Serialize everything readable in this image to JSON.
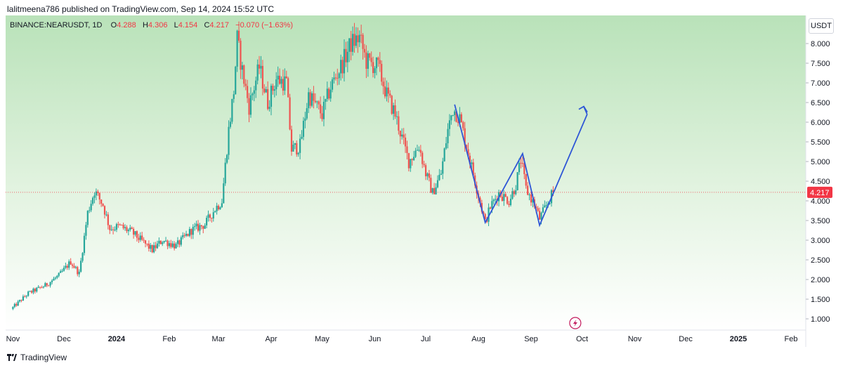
{
  "header": {
    "published_text": "lalitmeena786 published on TradingView.com, Sep 14, 2024 15:52 UTC"
  },
  "legend": {
    "symbol": "BINANCE:NEARUSDT, 1D",
    "o_label": "O",
    "o_value": "4.288",
    "h_label": "H",
    "h_value": "4.306",
    "l_label": "L",
    "l_value": "4.154",
    "c_label": "C",
    "c_value": "4.217",
    "change": "−0.070 (−1.63%)"
  },
  "currency_button": "USDT",
  "footer": {
    "brand": "TradingView"
  },
  "colors": {
    "up": "#26a69a",
    "down": "#ef5350",
    "annotation": "#2e56d6",
    "last_price_badge": "#f23645",
    "bg_top": "#b9e2b9",
    "bg_bottom": "#ffffff"
  },
  "chart_data": {
    "type": "candlestick",
    "symbol": "BINANCE:NEARUSDT",
    "interval": "1D",
    "last_price": 4.217,
    "last_price_label": "4.217",
    "ylim": [
      0.8,
      8.7
    ],
    "y_ticks": [
      {
        "value": 1.0,
        "label": "1.000"
      },
      {
        "value": 1.5,
        "label": "1.500"
      },
      {
        "value": 2.0,
        "label": "2.000"
      },
      {
        "value": 2.5,
        "label": "2.500"
      },
      {
        "value": 3.0,
        "label": "3.000"
      },
      {
        "value": 3.5,
        "label": "3.500"
      },
      {
        "value": 4.0,
        "label": "4.000"
      },
      {
        "value": 4.5,
        "label": "4.500"
      },
      {
        "value": 5.0,
        "label": "5.000"
      },
      {
        "value": 5.5,
        "label": "5.500"
      },
      {
        "value": 6.0,
        "label": "6.000"
      },
      {
        "value": 6.5,
        "label": "6.500"
      },
      {
        "value": 7.0,
        "label": "7.000"
      },
      {
        "value": 7.5,
        "label": "7.500"
      },
      {
        "value": 8.0,
        "label": "8.000"
      }
    ],
    "x_ticks": [
      {
        "date": "2023-11-01",
        "label": "Nov",
        "bold": false
      },
      {
        "date": "2023-12-01",
        "label": "Dec",
        "bold": false
      },
      {
        "date": "2024-01-01",
        "label": "2024",
        "bold": true
      },
      {
        "date": "2024-02-01",
        "label": "Feb",
        "bold": false
      },
      {
        "date": "2024-03-01",
        "label": "Mar",
        "bold": false
      },
      {
        "date": "2024-04-01",
        "label": "Apr",
        "bold": false
      },
      {
        "date": "2024-05-01",
        "label": "May",
        "bold": false
      },
      {
        "date": "2024-06-01",
        "label": "Jun",
        "bold": false
      },
      {
        "date": "2024-07-01",
        "label": "Jul",
        "bold": false
      },
      {
        "date": "2024-08-01",
        "label": "Aug",
        "bold": false
      },
      {
        "date": "2024-09-01",
        "label": "Sep",
        "bold": false
      },
      {
        "date": "2024-10-01",
        "label": "Oct",
        "bold": false
      },
      {
        "date": "2024-11-01",
        "label": "Nov",
        "bold": false
      },
      {
        "date": "2024-12-01",
        "label": "Dec",
        "bold": false
      },
      {
        "date": "2025-01-01",
        "label": "2025",
        "bold": true
      },
      {
        "date": "2025-02-01",
        "label": "Feb",
        "bold": false
      }
    ],
    "price_path": [
      [
        "2023-10-31",
        1.25
      ],
      [
        "2023-11-10",
        1.65
      ],
      [
        "2023-11-20",
        1.85
      ],
      [
        "2023-11-28",
        2.1
      ],
      [
        "2023-12-05",
        2.45
      ],
      [
        "2023-12-10",
        2.15
      ],
      [
        "2023-12-15",
        3.7
      ],
      [
        "2023-12-19",
        4.25
      ],
      [
        "2023-12-24",
        3.9
      ],
      [
        "2023-12-28",
        3.3
      ],
      [
        "2024-01-03",
        3.35
      ],
      [
        "2024-01-10",
        3.2
      ],
      [
        "2024-01-22",
        2.75
      ],
      [
        "2024-01-28",
        3.0
      ],
      [
        "2024-02-05",
        2.85
      ],
      [
        "2024-02-14",
        3.25
      ],
      [
        "2024-02-22",
        3.4
      ],
      [
        "2024-02-28",
        3.8
      ],
      [
        "2024-03-03",
        4.0
      ],
      [
        "2024-03-07",
        5.8
      ],
      [
        "2024-03-10",
        6.8
      ],
      [
        "2024-03-12",
        8.1
      ],
      [
        "2024-03-15",
        7.3
      ],
      [
        "2024-03-19",
        6.4
      ],
      [
        "2024-03-25",
        7.4
      ],
      [
        "2024-03-30",
        6.5
      ],
      [
        "2024-04-04",
        7.1
      ],
      [
        "2024-04-10",
        7.0
      ],
      [
        "2024-04-13",
        5.3
      ],
      [
        "2024-04-18",
        5.4
      ],
      [
        "2024-04-23",
        6.7
      ],
      [
        "2024-05-01",
        6.2
      ],
      [
        "2024-05-06",
        6.9
      ],
      [
        "2024-05-13",
        7.5
      ],
      [
        "2024-05-18",
        8.0
      ],
      [
        "2024-05-23",
        8.15
      ],
      [
        "2024-05-27",
        7.55
      ],
      [
        "2024-06-03",
        7.4
      ],
      [
        "2024-06-08",
        6.7
      ],
      [
        "2024-06-13",
        6.2
      ],
      [
        "2024-06-17",
        5.6
      ],
      [
        "2024-06-21",
        5.0
      ],
      [
        "2024-06-27",
        5.4
      ],
      [
        "2024-07-01",
        4.7
      ],
      [
        "2024-07-05",
        4.2
      ],
      [
        "2024-07-10",
        4.7
      ],
      [
        "2024-07-14",
        5.8
      ],
      [
        "2024-07-17",
        6.35
      ],
      [
        "2024-07-21",
        6.1
      ],
      [
        "2024-07-25",
        5.4
      ],
      [
        "2024-07-30",
        4.5
      ],
      [
        "2024-08-05",
        3.45
      ],
      [
        "2024-08-08",
        3.85
      ],
      [
        "2024-08-13",
        4.2
      ],
      [
        "2024-08-19",
        4.0
      ],
      [
        "2024-08-23",
        4.4
      ],
      [
        "2024-08-26",
        5.05
      ],
      [
        "2024-08-29",
        4.3
      ],
      [
        "2024-09-03",
        3.9
      ],
      [
        "2024-09-06",
        3.55
      ],
      [
        "2024-09-09",
        3.8
      ],
      [
        "2024-09-14",
        4.217
      ]
    ],
    "annotation_path": [
      [
        "2024-07-18",
        6.45
      ],
      [
        "2024-08-05",
        3.45
      ],
      [
        "2024-08-27",
        5.2
      ],
      [
        "2024-09-06",
        3.38
      ],
      [
        "2024-10-04",
        6.2
      ]
    ],
    "annotation_arrow_tail": [
      "2024-10-02",
      6.4
    ],
    "event_marker": {
      "date": "2024-09-27",
      "icon": "lightning-icon"
    }
  }
}
